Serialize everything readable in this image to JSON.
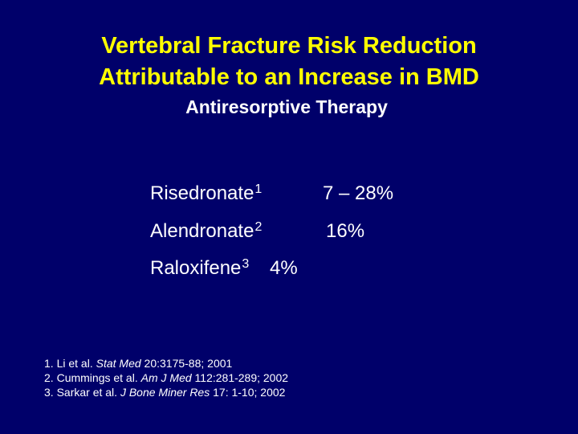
{
  "title": {
    "line1": "Vertebral Fracture Risk Reduction",
    "line2": "Attributable to an Increase in BMD"
  },
  "subtitle": "Antiresorptive Therapy",
  "rows": [
    {
      "name": "Risedronate",
      "ref": "1",
      "value": "7 – 28%"
    },
    {
      "name": "Alendronate",
      "ref": "2",
      "value": "16%"
    },
    {
      "name": "Raloxifene",
      "ref": "3",
      "value": "4%"
    }
  ],
  "references": [
    {
      "num": "1.",
      "authors": "Li et al.",
      "journal": "Stat Med",
      "details": "20:3175-88; 2001"
    },
    {
      "num": "2.",
      "authors": "Cummings et al.",
      "journal": "Am J Med",
      "details": "112:281-289; 2002"
    },
    {
      "num": "3.",
      "authors": "Sarkar et al.",
      "journal": "J Bone Miner Res",
      "details": "17: 1-10; 2002"
    }
  ],
  "colors": {
    "background": "#00006a",
    "title": "#ffff00",
    "text": "#ffffff"
  }
}
